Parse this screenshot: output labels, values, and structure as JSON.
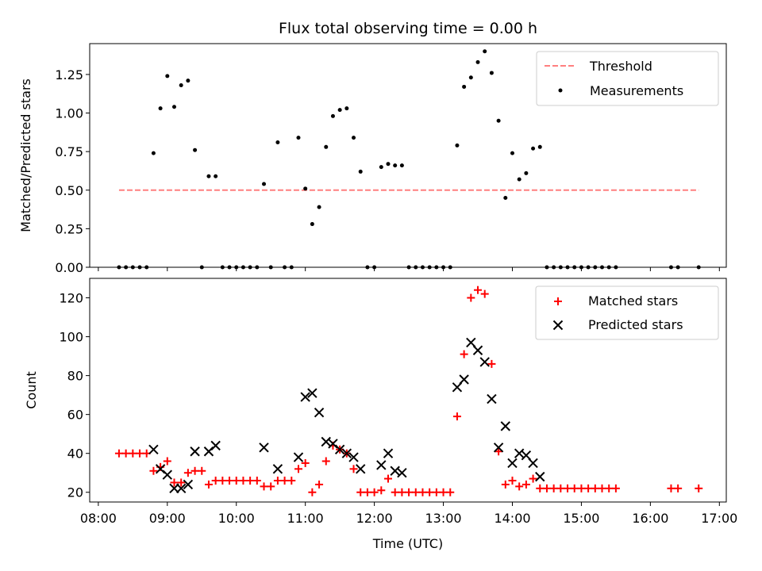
{
  "chart_data": [
    {
      "type": "scatter",
      "title": "Flux total observing time = 0.00 h",
      "xlabel": "",
      "ylabel": "Matched/Predicted stars",
      "x_unit": "hours UTC",
      "xlim": [
        "08:00",
        "17:00"
      ],
      "ylim": [
        0,
        1.45
      ],
      "yticks": [
        "0.00",
        "0.25",
        "0.50",
        "0.75",
        "1.00",
        "1.25"
      ],
      "legend_position": "top-right",
      "colors": {
        "threshold": "#ff7f7f",
        "measurements": "#000000"
      },
      "threshold": {
        "name": "Threshold",
        "value": 0.5,
        "x_range": [
          "08:18",
          "16:42"
        ]
      },
      "series": [
        {
          "name": "Measurements",
          "points": [
            [
              "08:18",
              0.0
            ],
            [
              "08:24",
              0.0
            ],
            [
              "08:30",
              0.0
            ],
            [
              "08:36",
              0.0
            ],
            [
              "08:42",
              0.0
            ],
            [
              "08:48",
              0.74
            ],
            [
              "08:54",
              1.03
            ],
            [
              "09:00",
              1.24
            ],
            [
              "09:06",
              1.04
            ],
            [
              "09:12",
              1.18
            ],
            [
              "09:18",
              1.21
            ],
            [
              "09:24",
              0.76
            ],
            [
              "09:30",
              0.0
            ],
            [
              "09:36",
              0.59
            ],
            [
              "09:42",
              0.59
            ],
            [
              "09:48",
              0.0
            ],
            [
              "09:54",
              0.0
            ],
            [
              "10:00",
              0.0
            ],
            [
              "10:06",
              0.0
            ],
            [
              "10:12",
              0.0
            ],
            [
              "10:18",
              0.0
            ],
            [
              "10:24",
              0.54
            ],
            [
              "10:30",
              0.0
            ],
            [
              "10:36",
              0.81
            ],
            [
              "10:42",
              0.0
            ],
            [
              "10:48",
              0.0
            ],
            [
              "10:54",
              0.84
            ],
            [
              "11:00",
              0.51
            ],
            [
              "11:06",
              0.28
            ],
            [
              "11:12",
              0.39
            ],
            [
              "11:18",
              0.78
            ],
            [
              "11:24",
              0.98
            ],
            [
              "11:30",
              1.02
            ],
            [
              "11:36",
              1.03
            ],
            [
              "11:42",
              0.84
            ],
            [
              "11:48",
              0.62
            ],
            [
              "11:54",
              0.0
            ],
            [
              "12:00",
              0.0
            ],
            [
              "12:06",
              0.65
            ],
            [
              "12:12",
              0.67
            ],
            [
              "12:18",
              0.66
            ],
            [
              "12:24",
              0.66
            ],
            [
              "12:30",
              0.0
            ],
            [
              "12:36",
              0.0
            ],
            [
              "12:42",
              0.0
            ],
            [
              "12:48",
              0.0
            ],
            [
              "12:54",
              0.0
            ],
            [
              "13:00",
              0.0
            ],
            [
              "13:06",
              0.0
            ],
            [
              "13:12",
              0.79
            ],
            [
              "13:18",
              1.17
            ],
            [
              "13:24",
              1.23
            ],
            [
              "13:30",
              1.33
            ],
            [
              "13:36",
              1.4
            ],
            [
              "13:42",
              1.26
            ],
            [
              "13:48",
              0.95
            ],
            [
              "13:54",
              0.45
            ],
            [
              "14:00",
              0.74
            ],
            [
              "14:06",
              0.57
            ],
            [
              "14:12",
              0.61
            ],
            [
              "14:18",
              0.77
            ],
            [
              "14:24",
              0.78
            ],
            [
              "14:30",
              0.0
            ],
            [
              "14:36",
              0.0
            ],
            [
              "14:42",
              0.0
            ],
            [
              "14:48",
              0.0
            ],
            [
              "14:54",
              0.0
            ],
            [
              "15:00",
              0.0
            ],
            [
              "15:06",
              0.0
            ],
            [
              "15:12",
              0.0
            ],
            [
              "15:18",
              0.0
            ],
            [
              "15:24",
              0.0
            ],
            [
              "15:30",
              0.0
            ],
            [
              "16:18",
              0.0
            ],
            [
              "16:24",
              0.0
            ],
            [
              "16:42",
              0.0
            ]
          ]
        }
      ]
    },
    {
      "type": "scatter",
      "title": "",
      "xlabel": "Time (UTC)",
      "ylabel": "Count",
      "x_unit": "hours UTC",
      "xlim": [
        "08:00",
        "17:00"
      ],
      "ylim": [
        15,
        130
      ],
      "yticks": [
        "20",
        "40",
        "60",
        "80",
        "100",
        "120"
      ],
      "xticks": [
        "08:00",
        "09:00",
        "10:00",
        "11:00",
        "12:00",
        "13:00",
        "14:00",
        "15:00",
        "16:00",
        "17:00"
      ],
      "legend_position": "top-right",
      "colors": {
        "matched": "#ff0000",
        "predicted": "#000000"
      },
      "series": [
        {
          "name": "Matched stars",
          "marker": "+",
          "points": [
            [
              "08:18",
              40
            ],
            [
              "08:24",
              40
            ],
            [
              "08:30",
              40
            ],
            [
              "08:36",
              40
            ],
            [
              "08:42",
              40
            ],
            [
              "08:48",
              31
            ],
            [
              "08:54",
              33
            ],
            [
              "09:00",
              36
            ],
            [
              "09:06",
              25
            ],
            [
              "09:12",
              25
            ],
            [
              "09:18",
              30
            ],
            [
              "09:24",
              31
            ],
            [
              "09:30",
              31
            ],
            [
              "09:36",
              24
            ],
            [
              "09:42",
              26
            ],
            [
              "09:48",
              26
            ],
            [
              "09:54",
              26
            ],
            [
              "10:00",
              26
            ],
            [
              "10:06",
              26
            ],
            [
              "10:12",
              26
            ],
            [
              "10:18",
              26
            ],
            [
              "10:24",
              23
            ],
            [
              "10:30",
              23
            ],
            [
              "10:36",
              26
            ],
            [
              "10:42",
              26
            ],
            [
              "10:48",
              26
            ],
            [
              "10:54",
              32
            ],
            [
              "11:00",
              35
            ],
            [
              "11:06",
              20
            ],
            [
              "11:12",
              24
            ],
            [
              "11:18",
              36
            ],
            [
              "11:24",
              44
            ],
            [
              "11:30",
              42
            ],
            [
              "11:36",
              40
            ],
            [
              "11:42",
              32
            ],
            [
              "11:48",
              20
            ],
            [
              "11:54",
              20
            ],
            [
              "12:00",
              20
            ],
            [
              "12:06",
              21
            ],
            [
              "12:12",
              27
            ],
            [
              "12:18",
              20
            ],
            [
              "12:24",
              20
            ],
            [
              "12:30",
              20
            ],
            [
              "12:36",
              20
            ],
            [
              "12:42",
              20
            ],
            [
              "12:48",
              20
            ],
            [
              "12:54",
              20
            ],
            [
              "13:00",
              20
            ],
            [
              "13:06",
              20
            ],
            [
              "13:12",
              59
            ],
            [
              "13:18",
              91
            ],
            [
              "13:24",
              120
            ],
            [
              "13:30",
              124
            ],
            [
              "13:36",
              122
            ],
            [
              "13:42",
              86
            ],
            [
              "13:48",
              41
            ],
            [
              "13:54",
              24
            ],
            [
              "14:00",
              26
            ],
            [
              "14:06",
              23
            ],
            [
              "14:12",
              24
            ],
            [
              "14:18",
              27
            ],
            [
              "14:24",
              22
            ],
            [
              "14:30",
              22
            ],
            [
              "14:36",
              22
            ],
            [
              "14:42",
              22
            ],
            [
              "14:48",
              22
            ],
            [
              "14:54",
              22
            ],
            [
              "15:00",
              22
            ],
            [
              "15:06",
              22
            ],
            [
              "15:12",
              22
            ],
            [
              "15:18",
              22
            ],
            [
              "15:24",
              22
            ],
            [
              "15:30",
              22
            ],
            [
              "16:18",
              22
            ],
            [
              "16:24",
              22
            ],
            [
              "16:42",
              22
            ]
          ]
        },
        {
          "name": "Predicted stars",
          "marker": "x",
          "points": [
            [
              "08:48",
              42
            ],
            [
              "08:54",
              32
            ],
            [
              "09:00",
              29
            ],
            [
              "09:06",
              22
            ],
            [
              "09:12",
              22
            ],
            [
              "09:18",
              24
            ],
            [
              "09:24",
              41
            ],
            [
              "09:36",
              41
            ],
            [
              "09:42",
              44
            ],
            [
              "10:24",
              43
            ],
            [
              "10:36",
              32
            ],
            [
              "10:54",
              38
            ],
            [
              "11:00",
              69
            ],
            [
              "11:06",
              71
            ],
            [
              "11:12",
              61
            ],
            [
              "11:18",
              46
            ],
            [
              "11:24",
              45
            ],
            [
              "11:30",
              42
            ],
            [
              "11:36",
              40
            ],
            [
              "11:42",
              38
            ],
            [
              "11:48",
              32
            ],
            [
              "12:06",
              34
            ],
            [
              "12:12",
              40
            ],
            [
              "12:18",
              31
            ],
            [
              "12:24",
              30
            ],
            [
              "13:12",
              74
            ],
            [
              "13:18",
              78
            ],
            [
              "13:24",
              97
            ],
            [
              "13:30",
              93
            ],
            [
              "13:36",
              87
            ],
            [
              "13:42",
              68
            ],
            [
              "13:48",
              43
            ],
            [
              "13:54",
              54
            ],
            [
              "14:00",
              35
            ],
            [
              "14:06",
              40
            ],
            [
              "14:12",
              39
            ],
            [
              "14:18",
              35
            ],
            [
              "14:24",
              28
            ]
          ]
        }
      ]
    }
  ]
}
